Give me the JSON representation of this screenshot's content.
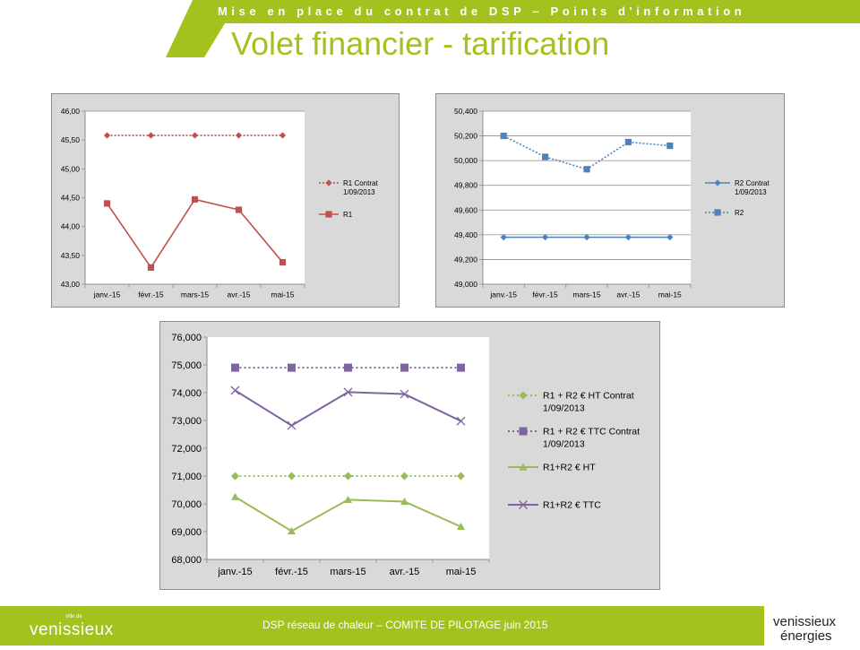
{
  "header": {
    "banner_text": "Mise en place du contrat de DSP – Points d'information",
    "title": "Volet financier - tarification"
  },
  "footer": {
    "text": "DSP réseau de chaleur – COMITE DE PILOTAGE juin 2015",
    "left_logo_small": "ville de",
    "left_logo_main": "venissieux",
    "right_logo_line1": "venissieux",
    "right_logo_line2": "énergies"
  },
  "colors": {
    "brand_green": "#a3c21d",
    "r1_red": "#c0504d",
    "r2_blue": "#4f81bd",
    "ht_green": "#9bbb59",
    "ttc_purple": "#8064a2"
  },
  "chart_data": [
    {
      "type": "line",
      "categories": [
        "janv.-15",
        "févr.-15",
        "mars-15",
        "avr.-15",
        "mai-15"
      ],
      "yticks": [
        "43,00",
        "43,50",
        "44,00",
        "44,50",
        "45,00",
        "45,50",
        "46,00"
      ],
      "ylim": [
        43,
        46
      ],
      "grid": "horizontal-top-only",
      "legend_position": "right",
      "series": [
        {
          "name": "R1 Contrat 1/09/2013",
          "values": [
            45.58,
            45.58,
            45.58,
            45.58,
            45.58
          ],
          "style": "dotted",
          "marker": "diamond",
          "color": "#c0504d"
        },
        {
          "name": "R1",
          "values": [
            44.4,
            43.29,
            44.47,
            44.29,
            43.38
          ],
          "style": "solid",
          "marker": "square",
          "color": "#c0504d"
        }
      ]
    },
    {
      "type": "line",
      "categories": [
        "janv.-15",
        "févr.-15",
        "mars-15",
        "avr.-15",
        "mai-15"
      ],
      "yticks": [
        "49,000",
        "49,200",
        "49,400",
        "49,600",
        "49,800",
        "50,000",
        "50,200",
        "50,400"
      ],
      "ylim": [
        49.0,
        50.4
      ],
      "grid": "horizontal",
      "legend_position": "right",
      "series": [
        {
          "name": "R2 Contrat 1/09/2013",
          "values": [
            49.38,
            49.38,
            49.38,
            49.38,
            49.38
          ],
          "style": "solid",
          "marker": "diamond",
          "color": "#4f81bd"
        },
        {
          "name": "R2",
          "values": [
            50.2,
            50.03,
            49.93,
            50.15,
            50.12
          ],
          "style": "dotted",
          "marker": "square",
          "color": "#4f81bd"
        }
      ]
    },
    {
      "type": "line",
      "categories": [
        "janv.-15",
        "févr.-15",
        "mars-15",
        "avr.-15",
        "mai-15"
      ],
      "yticks": [
        "68,000",
        "69,000",
        "70,000",
        "71,000",
        "72,000",
        "73,000",
        "74,000",
        "75,000",
        "76,000"
      ],
      "ylim": [
        68,
        76
      ],
      "grid": "none",
      "legend_position": "right",
      "series": [
        {
          "name": "R1 + R2 € HT Contrat 1/09/2013",
          "values": [
            71.0,
            71.0,
            71.0,
            71.0,
            71.0
          ],
          "style": "dotted",
          "marker": "diamond",
          "color": "#9bbb59"
        },
        {
          "name": "R1 + R2 € TTC Contrat 1/09/2013",
          "values": [
            74.9,
            74.9,
            74.9,
            74.9,
            74.9
          ],
          "style": "dotted",
          "marker": "square",
          "color": "#8064a2"
        },
        {
          "name": "R1+R2 € HT",
          "values": [
            70.25,
            69.02,
            70.15,
            70.08,
            69.18
          ],
          "style": "solid",
          "marker": "triangle",
          "color": "#9bbb59"
        },
        {
          "name": "R1+R2 € TTC",
          "values": [
            74.08,
            72.82,
            74.02,
            73.95,
            72.98
          ],
          "style": "solid",
          "marker": "x",
          "color": "#8064a2"
        }
      ]
    }
  ]
}
